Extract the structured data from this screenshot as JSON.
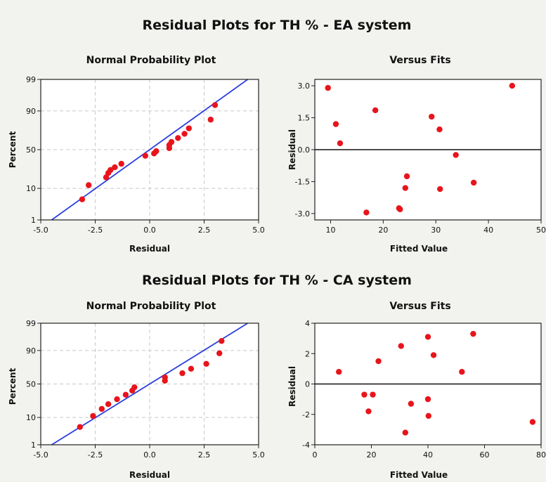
{
  "sections": [
    {
      "title": "Residual Plots for TH % - EA system"
    },
    {
      "title": "Residual Plots for TH % - CA system"
    }
  ],
  "colors": {
    "point": "#e8141c",
    "fit_line": "#2b3fdc",
    "grid": "#c8c8c8",
    "frame": "#222222",
    "panel_bg": "#ffffff"
  },
  "chart_data": [
    {
      "type": "scatter",
      "title": "Normal Probability Plot",
      "xlabel": "Residual",
      "ylabel": "Percent",
      "xlim": [
        -5.0,
        5.0
      ],
      "ylim": [
        1,
        99
      ],
      "y_scale": "normal-probability",
      "grid": true,
      "xticks": [
        -5.0,
        -2.5,
        0.0,
        2.5,
        5.0
      ],
      "xtick_labels": [
        "-5.0",
        "-2.5",
        "0.0",
        "2.5",
        "5.0"
      ],
      "yticks": [
        1,
        10,
        50,
        90,
        99
      ],
      "ytick_labels": [
        "1",
        "10",
        "50",
        "90",
        "99"
      ],
      "fit_line": {
        "x": [
          -4.5,
          4.5
        ],
        "y": [
          1,
          99
        ]
      },
      "points": {
        "x": [
          -3.1,
          -2.8,
          -2.0,
          -1.9,
          -1.8,
          -1.6,
          -1.3,
          -0.2,
          0.2,
          0.3,
          0.9,
          0.9,
          1.0,
          1.3,
          1.6,
          1.8,
          2.8,
          3.0
        ],
        "y": [
          5,
          12,
          18,
          22,
          25,
          28,
          32,
          42,
          45,
          48,
          52,
          56,
          60,
          65,
          70,
          76,
          84,
          93
        ]
      }
    },
    {
      "type": "scatter",
      "title": "Versus Fits",
      "xlabel": "Fitted Value",
      "ylabel": "Residual",
      "xlim": [
        7,
        50
      ],
      "ylim": [
        -3.3,
        3.3
      ],
      "grid": false,
      "xticks": [
        10,
        20,
        30,
        40,
        50
      ],
      "xtick_labels": [
        "10",
        "20",
        "30",
        "40",
        "50"
      ],
      "yticks": [
        -3.0,
        -1.5,
        0.0,
        1.5,
        3.0
      ],
      "ytick_labels": [
        "-3.0",
        "-1.5",
        "0.0",
        "1.5",
        "3.0"
      ],
      "reference_line_y": 0,
      "points": {
        "x": [
          9.5,
          11,
          11.8,
          16.8,
          18.5,
          23,
          23.2,
          24.2,
          24.5,
          29.2,
          30.7,
          30.8,
          33.8,
          37.2,
          44.5
        ],
        "y": [
          2.9,
          1.2,
          0.3,
          -2.95,
          1.85,
          -2.75,
          -2.8,
          -1.8,
          -1.25,
          1.55,
          0.95,
          -1.85,
          -0.25,
          -1.55,
          3.0
        ]
      }
    },
    {
      "type": "scatter",
      "title": "Normal Probability Plot",
      "xlabel": "Residual",
      "ylabel": "Percent",
      "xlim": [
        -5.0,
        5.0
      ],
      "ylim": [
        1,
        99
      ],
      "y_scale": "normal-probability",
      "grid": true,
      "xticks": [
        -5.0,
        -2.5,
        0.0,
        2.5,
        5.0
      ],
      "xtick_labels": [
        "-5.0",
        "-2.5",
        "0.0",
        "2.5",
        "5.0"
      ],
      "yticks": [
        1,
        10,
        50,
        90,
        99
      ],
      "ytick_labels": [
        "1",
        "10",
        "50",
        "90",
        "99"
      ],
      "fit_line": {
        "x": [
          -4.5,
          4.5
        ],
        "y": [
          1,
          99
        ]
      },
      "points": {
        "x": [
          -3.2,
          -2.6,
          -2.2,
          -1.9,
          -1.5,
          -1.1,
          -0.8,
          -0.7,
          0.7,
          0.7,
          1.5,
          1.9,
          2.6,
          3.2,
          3.3
        ],
        "y": [
          5,
          11,
          17,
          22,
          28,
          34,
          40,
          45,
          55,
          60,
          66,
          72,
          78,
          88,
          95
        ]
      }
    },
    {
      "type": "scatter",
      "title": "Versus Fits",
      "xlabel": "Fitted Value",
      "ylabel": "Residual",
      "xlim": [
        0,
        80
      ],
      "ylim": [
        -4,
        4
      ],
      "grid": false,
      "xticks": [
        0,
        20,
        40,
        60,
        80
      ],
      "xtick_labels": [
        "0",
        "20",
        "40",
        "60",
        "80"
      ],
      "yticks": [
        -4,
        -2,
        0,
        2,
        4
      ],
      "ytick_labels": [
        "-4",
        "-2",
        "0",
        "2",
        "4"
      ],
      "reference_line_y": 0,
      "points": {
        "x": [
          8.5,
          17.5,
          19,
          20.5,
          22.5,
          30.5,
          32,
          34,
          40,
          40,
          40.2,
          42,
          52,
          56,
          77
        ],
        "y": [
          0.8,
          -0.7,
          -1.8,
          -0.7,
          1.5,
          2.5,
          -3.2,
          -1.3,
          3.1,
          -1.0,
          -2.1,
          1.9,
          0.8,
          3.3,
          -2.5
        ]
      }
    }
  ]
}
